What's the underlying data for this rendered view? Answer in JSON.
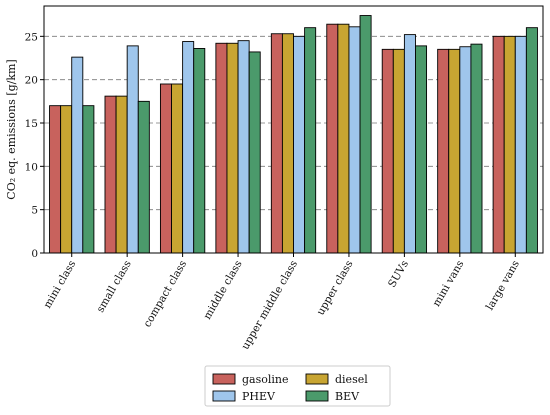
{
  "chart_data": {
    "type": "bar",
    "ylabel": "CO₂ eq. emissions [g/km]",
    "xlabel": "",
    "title": "",
    "ylim": [
      0,
      28.5
    ],
    "yticks": [
      0,
      5,
      10,
      15,
      20,
      25
    ],
    "grid": "horizontal dashed",
    "legend_position": "bottom-center",
    "categories": [
      "mini class",
      "small class",
      "compact class",
      "middle class",
      "upper middle class",
      "upper class",
      "SUVs",
      "mini vans",
      "large vans"
    ],
    "series": [
      {
        "name": "gasoline",
        "color": "#c8625d",
        "values": [
          17.0,
          18.1,
          19.5,
          24.2,
          25.3,
          26.4,
          23.5,
          23.5,
          25.0
        ]
      },
      {
        "name": "diesel",
        "color": "#c8a532",
        "values": [
          17.0,
          18.1,
          19.5,
          24.2,
          25.3,
          26.4,
          23.5,
          23.5,
          25.0
        ]
      },
      {
        "name": "PHEV",
        "color": "#9fc6ec",
        "values": [
          22.6,
          23.9,
          24.4,
          24.5,
          25.0,
          26.1,
          25.2,
          23.8,
          25.0
        ]
      },
      {
        "name": "BEV",
        "color": "#4b9a6b",
        "values": [
          17.0,
          17.5,
          23.6,
          23.2,
          26.0,
          27.4,
          23.9,
          24.1,
          26.0
        ]
      }
    ],
    "legend_layout": [
      [
        "gasoline",
        "diesel"
      ],
      [
        "PHEV",
        "BEV"
      ]
    ]
  }
}
